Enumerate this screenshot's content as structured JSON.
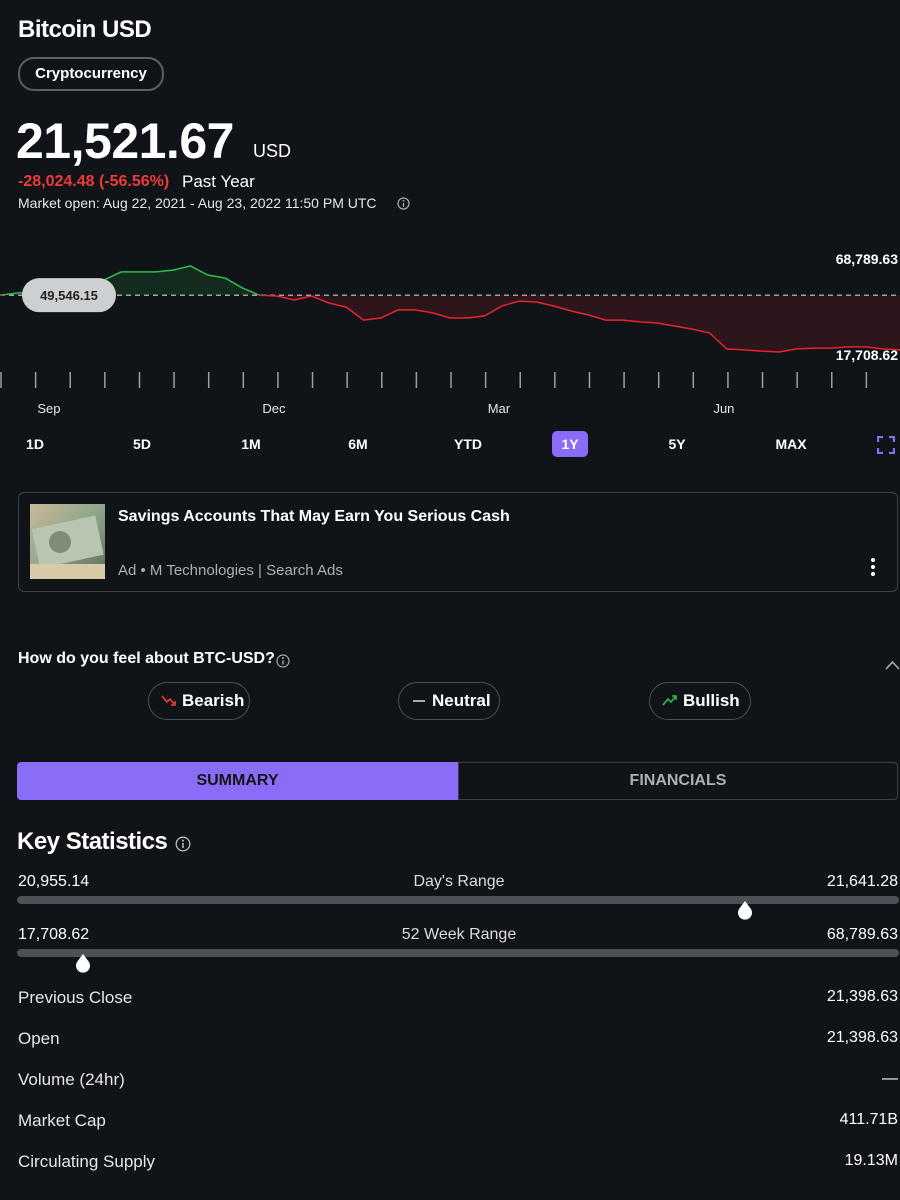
{
  "header": {
    "title": "Bitcoin USD",
    "badge": "Cryptocurrency",
    "price": "21,521.67",
    "currency": "USD",
    "change": "-28,024.48 (-56.56%)",
    "change_period": "Past Year",
    "market_open": "Market open: Aug 22, 2021 - Aug 23, 2022 11:50 PM UTC"
  },
  "chart_data": {
    "type": "line",
    "categories": [
      null,
      null,
      null,
      "Sep",
      null,
      null,
      null,
      null,
      null,
      null,
      null,
      null,
      null,
      null,
      null,
      null,
      "Dec",
      null,
      null,
      null,
      null,
      null,
      null,
      null,
      null,
      null,
      null,
      null,
      null,
      "Mar",
      null,
      null,
      null,
      null,
      null,
      null,
      null,
      null,
      null,
      null,
      null,
      null,
      "Jun",
      null,
      null,
      null,
      null,
      null,
      null,
      null,
      null,
      null,
      null
    ],
    "values": [
      49500,
      50700,
      51200,
      51800,
      52300,
      53900,
      57600,
      61900,
      61900,
      61900,
      62900,
      65100,
      60300,
      58700,
      53400,
      49500,
      49100,
      47000,
      49100,
      45400,
      43200,
      36300,
      37400,
      41700,
      41700,
      40100,
      37400,
      37400,
      38500,
      43800,
      46400,
      45900,
      43800,
      41100,
      39000,
      36300,
      36300,
      35300,
      34700,
      33100,
      31500,
      29400,
      20900,
      20400,
      19800,
      19300,
      20900,
      21400,
      21400,
      22000,
      22000,
      20900,
      20400
    ],
    "ylim": [
      17708.62,
      68789.63
    ],
    "yticks": [
      {
        "value": 68789.63,
        "label": "68,789.63"
      },
      {
        "value": 17708.62,
        "label": "17,708.62"
      }
    ],
    "reference": {
      "value": 49546.15,
      "label": "49,546.15"
    },
    "color_up": "#2dbd4e",
    "color_down": "#e8222e"
  },
  "range_buttons": {
    "options": [
      "1D",
      "5D",
      "1M",
      "6M",
      "YTD",
      "1Y",
      "5Y",
      "MAX"
    ],
    "selected": "1Y"
  },
  "ad": {
    "title": "Savings Accounts That May Earn You Serious Cash",
    "sponsor": "Ad • M Technologies | Search Ads"
  },
  "sentiment": {
    "question": "How do you feel about BTC-USD?",
    "options": [
      "Bearish",
      "Neutral",
      "Bullish"
    ]
  },
  "tabs": {
    "items": [
      "SUMMARY",
      "FINANCIALS"
    ],
    "active": "SUMMARY"
  },
  "key_statistics": {
    "title": "Key Statistics",
    "ranges": [
      {
        "low": "20,955.14",
        "label": "Day's Range",
        "high": "21,641.28"
      },
      {
        "low": "17,708.62",
        "label": "52 Week Range",
        "high": "68,789.63"
      }
    ],
    "rows": [
      {
        "label": "Previous Close",
        "value": "21,398.63"
      },
      {
        "label": "Open",
        "value": "21,398.63"
      },
      {
        "label": "Volume (24hr)",
        "value": "—"
      },
      {
        "label": "Market Cap",
        "value": "411.71B"
      },
      {
        "label": "Circulating Supply",
        "value": "19.13M"
      }
    ]
  }
}
